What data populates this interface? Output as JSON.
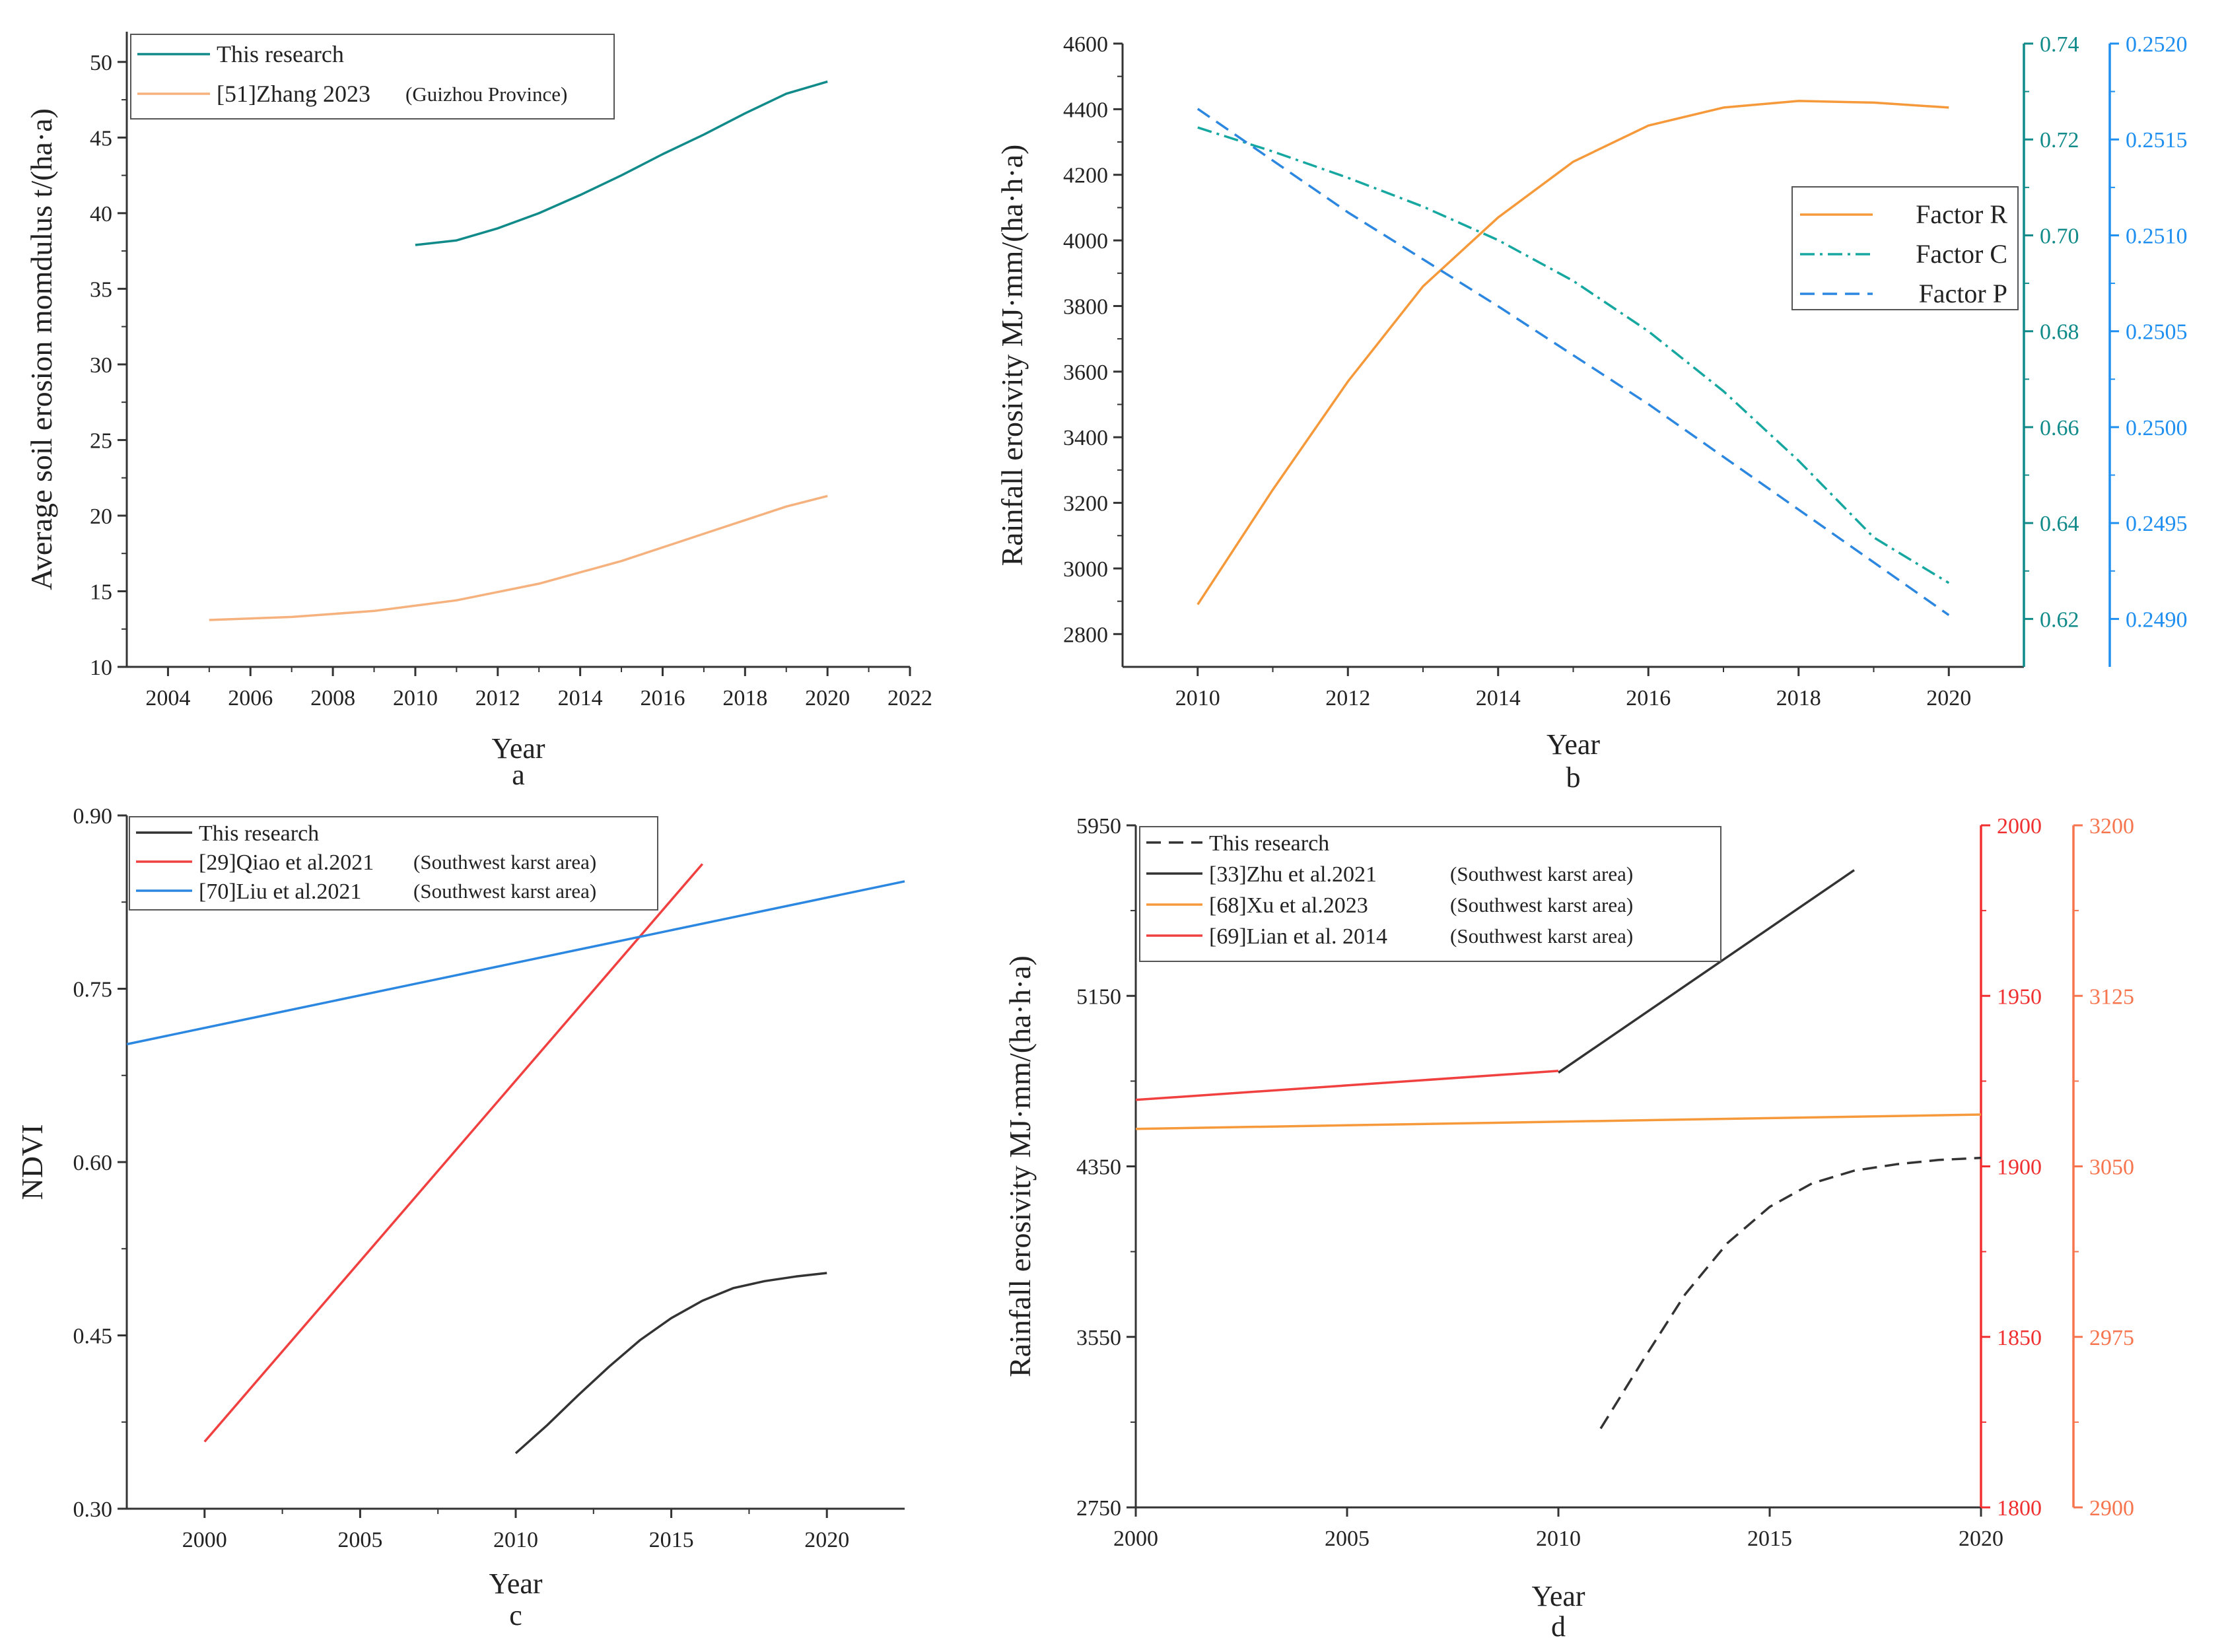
{
  "colors": {
    "teal": "#118a8a",
    "peach": "#f6b27e",
    "orange": "#f5993a",
    "tealDashDot": "#16a7a0",
    "blue": "#2b87e0",
    "blueAxis": "#1f8ff0",
    "red": "#f04040",
    "redAxis": "#f03030",
    "salmon": "#f7754e",
    "black": "#333333",
    "axis": "#333333"
  },
  "chart_data": [
    {
      "id": "a",
      "type": "line",
      "panel_label": "a",
      "xlabel": "Year",
      "ylabel": "Average soil erosion momdulus t/(ha·a)",
      "xlim": [
        2003,
        2022
      ],
      "ylim": [
        10,
        52
      ],
      "xticks": [
        "2004",
        "2006",
        "2008",
        "2010",
        "2012",
        "2014",
        "2016",
        "2018",
        "2020",
        "2022"
      ],
      "yticks": [
        "10",
        "15",
        "20",
        "25",
        "30",
        "35",
        "40",
        "45",
        "50"
      ],
      "series": [
        {
          "name": "This research",
          "source_note": "",
          "color": "teal",
          "dash": "solid",
          "x": [
            2010,
            2011,
            2012,
            2013,
            2014,
            2015,
            2016,
            2017,
            2018,
            2019,
            2020
          ],
          "y": [
            37.9,
            38.2,
            39.0,
            40.0,
            41.2,
            42.5,
            43.9,
            45.2,
            46.6,
            47.9,
            48.7
          ]
        },
        {
          "name": "[51]Zhang 2023",
          "source_note": "(Guizhou Province)",
          "color": "peach",
          "dash": "solid",
          "x": [
            2005,
            2007,
            2009,
            2011,
            2013,
            2015,
            2017,
            2019,
            2020
          ],
          "y": [
            13.1,
            13.3,
            13.7,
            14.4,
            15.5,
            17.0,
            18.8,
            20.6,
            21.3
          ]
        }
      ]
    },
    {
      "id": "b",
      "type": "line",
      "panel_label": "b",
      "xlabel": "Year",
      "ylabel": "Rainfall erosivity MJ·mm/(ha·h·a)",
      "xlim": [
        2009,
        2021
      ],
      "ylim": [
        2700,
        4600
      ],
      "xticks": [
        "2010",
        "2012",
        "2014",
        "2016",
        "2018",
        "2020"
      ],
      "yticks": [
        "2800",
        "3000",
        "3200",
        "3400",
        "3600",
        "3800",
        "4000",
        "4200",
        "4400",
        "4600"
      ],
      "y2lim": [
        0.61,
        0.74
      ],
      "y2ticks": [
        "0.62",
        "0.64",
        "0.66",
        "0.68",
        "0.70",
        "0.72",
        "0.74"
      ],
      "y3lim": [
        0.24875,
        0.252
      ],
      "y3ticks": [
        "0.2490",
        "0.2495",
        "0.2500",
        "0.2505",
        "0.2510",
        "0.2515",
        "0.2520"
      ],
      "series": [
        {
          "name": "Factor R",
          "axis": "left",
          "color": "orange",
          "dash": "solid",
          "x": [
            2010,
            2011,
            2012,
            2013,
            2014,
            2015,
            2016,
            2017,
            2018,
            2019,
            2020
          ],
          "y": [
            2890,
            3240,
            3570,
            3860,
            4070,
            4240,
            4350,
            4405,
            4425,
            4420,
            4405
          ]
        },
        {
          "name": "Factor C",
          "axis": "right1",
          "color": "tealDashDot",
          "dash": "dashdot",
          "x": [
            2010,
            2011,
            2012,
            2013,
            2014,
            2015,
            2016,
            2017,
            2018,
            2019,
            2020
          ],
          "y": [
            0.7225,
            0.7175,
            0.712,
            0.706,
            0.699,
            0.6905,
            0.68,
            0.6675,
            0.653,
            0.637,
            0.6275
          ]
        },
        {
          "name": "Factor P",
          "axis": "right2",
          "color": "blue",
          "dash": "dashed",
          "x": [
            2010,
            2012,
            2014,
            2016,
            2018,
            2020
          ],
          "y": [
            0.25166,
            0.25112,
            0.25063,
            0.25012,
            0.24957,
            0.24902
          ]
        }
      ]
    },
    {
      "id": "c",
      "type": "line",
      "panel_label": "c",
      "xlabel": "Year",
      "ylabel": "NDVI",
      "xlim": [
        1997.5,
        2022.5
      ],
      "ylim": [
        0.3,
        0.9
      ],
      "xticks": [
        "2000",
        "2005",
        "2010",
        "2015",
        "2020"
      ],
      "yticks": [
        "0.30",
        "0.45",
        "0.60",
        "0.75",
        "0.90"
      ],
      "series": [
        {
          "name": "This research",
          "source_note": "",
          "color": "black",
          "dash": "solid",
          "x": [
            2010,
            2011,
            2012,
            2013,
            2014,
            2015,
            2016,
            2017,
            2018,
            2019,
            2020
          ],
          "y": [
            0.348,
            0.372,
            0.398,
            0.423,
            0.446,
            0.465,
            0.48,
            0.491,
            0.497,
            0.501,
            0.504
          ]
        },
        {
          "name": "[29]Qiao et al.2021",
          "source_note": "(Southwest karst area)",
          "color": "red",
          "dash": "solid",
          "x": [
            2000,
            2016
          ],
          "y": [
            0.358,
            0.858
          ]
        },
        {
          "name": "[70]Liu et al.2021",
          "source_note": "(Southwest karst area)",
          "color": "blue",
          "dash": "solid",
          "x": [
            1997.5,
            2022.5
          ],
          "y": [
            0.702,
            0.843
          ]
        }
      ]
    },
    {
      "id": "d",
      "type": "line",
      "panel_label": "d",
      "xlabel": "Year",
      "ylabel": "Rainfall erosivity MJ·mm/(ha·h·a)",
      "xlim": [
        2000,
        2020
      ],
      "ylim": [
        2750,
        5950
      ],
      "xticks": [
        "2000",
        "2005",
        "2010",
        "2015",
        "2020"
      ],
      "yticks": [
        "2750",
        "3550",
        "4350",
        "5150",
        "5950"
      ],
      "y2lim": [
        1800,
        2000
      ],
      "y2ticks": [
        "1800",
        "1850",
        "1900",
        "1950",
        "2000"
      ],
      "y3lim": [
        2900,
        3200
      ],
      "y3ticks": [
        "2900",
        "2975",
        "3050",
        "3125",
        "3200"
      ],
      "series": [
        {
          "name": "This research",
          "source_note": "",
          "axis": "left",
          "color": "black",
          "dash": "dashed",
          "x": [
            2011,
            2012,
            2013,
            2014,
            2015,
            2016,
            2017,
            2018,
            2019,
            2020
          ],
          "y": [
            3120,
            3440,
            3750,
            3990,
            4160,
            4270,
            4330,
            4360,
            4380,
            4390
          ]
        },
        {
          "name": "[33]Zhu et al.2021",
          "source_note": "(Southwest karst area)",
          "axis": "left",
          "color": "black",
          "dash": "solid",
          "x": [
            2010,
            2017
          ],
          "y": [
            4790,
            5740
          ]
        },
        {
          "name": "[68]Xu et al.2023",
          "source_note": "(Southwest karst area)",
          "axis": "right2",
          "color": "orange",
          "dash": "solid",
          "x": [
            2000,
            2020
          ],
          "y": [
            3066.5,
            3072.8
          ]
        },
        {
          "name": "[69]Lian et al. 2014",
          "source_note": "(Southwest karst area)",
          "axis": "right1",
          "color": "red",
          "dash": "solid",
          "x": [
            2000,
            2010
          ],
          "y": [
            1919.5,
            1928.0
          ]
        }
      ]
    }
  ]
}
